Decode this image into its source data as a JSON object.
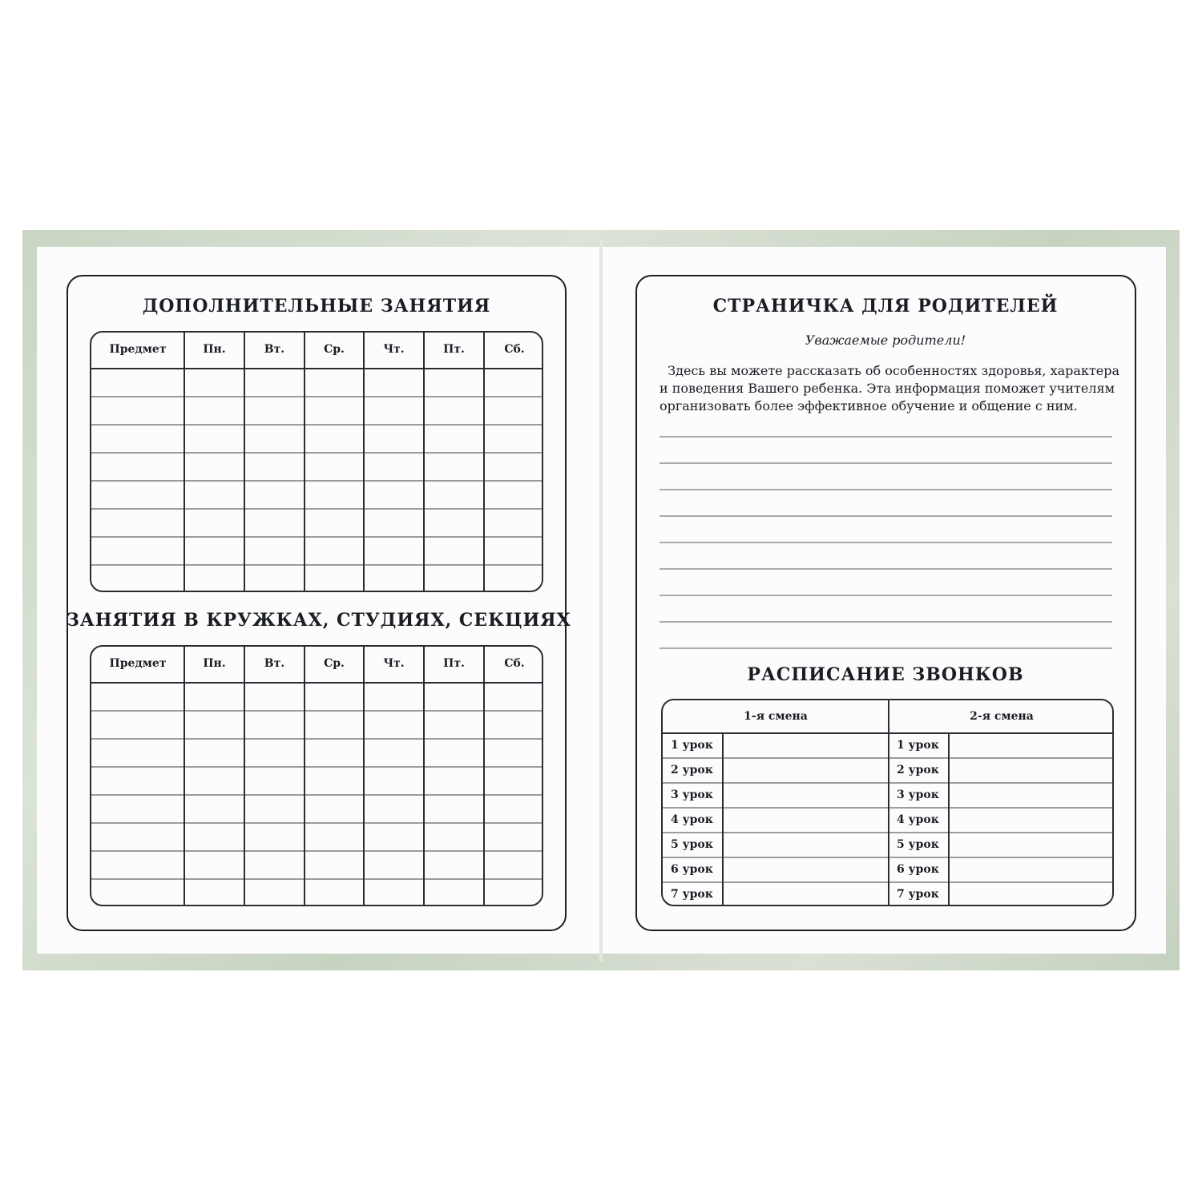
{
  "left_page": {
    "section1": {
      "title": "ДОПОЛНИТЕЛЬНЫЕ ЗАНЯТИЯ",
      "columns": [
        "Предмет",
        "Пн.",
        "Вт.",
        "Ср.",
        "Чт.",
        "Пт.",
        "Сб."
      ],
      "empty_rows": 8
    },
    "section2": {
      "title": "ЗАНЯТИЯ В КРУЖКАХ, СТУДИЯХ, СЕКЦИЯХ",
      "columns": [
        "Предмет",
        "Пн.",
        "Вт.",
        "Ср.",
        "Чт.",
        "Пт.",
        "Сб."
      ],
      "empty_rows": 8
    }
  },
  "right_page": {
    "title": "СТРАНИЧКА ДЛЯ РОДИТЕЛЕЙ",
    "greeting": "Уважаемые родители!",
    "paragraph_lines": [
      "  Здесь вы можете рассказать об особенностях здоровья, характера",
      "и поведения Вашего ребенка. Эта информация поможет учителям",
      "организовать более эффективное обучение и общение с ним."
    ],
    "writing_lines": 9,
    "bells": {
      "title": "РАСПИСАНИЕ ЗВОНКОВ",
      "shifts": [
        "1-я смена",
        "2-я смена"
      ],
      "lessons": [
        "1 урок",
        "2 урок",
        "3 урок",
        "4 урок",
        "5 урок",
        "6 урок",
        "7 урок"
      ]
    }
  },
  "colors": {
    "cover": "#c9d6c4",
    "ink": "#1a1d24",
    "rule": "#a8aaad"
  }
}
